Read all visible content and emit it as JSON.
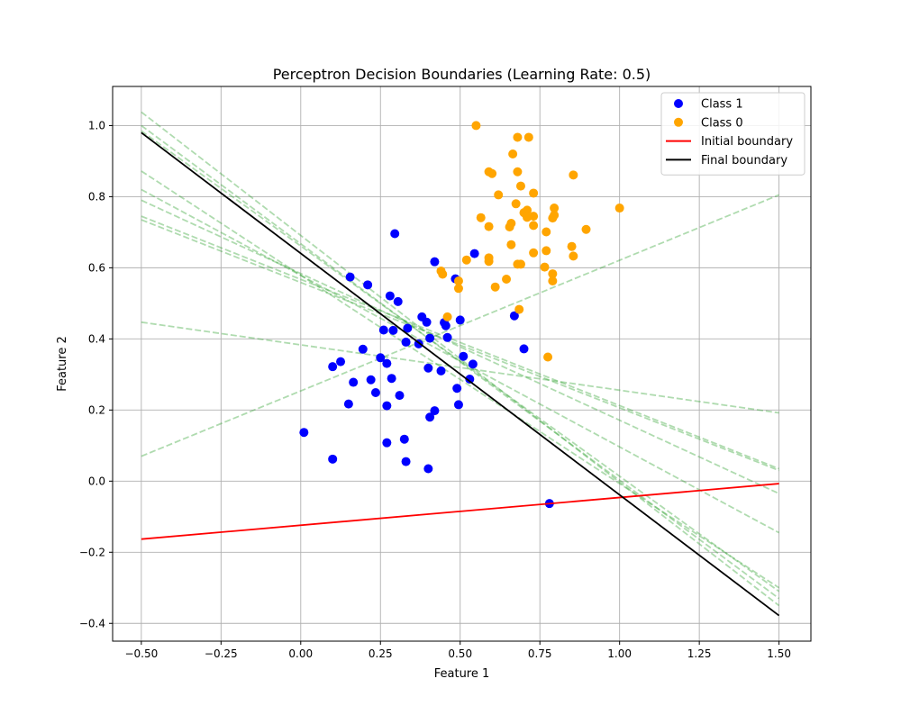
{
  "chart_data": {
    "type": "scatter",
    "title": "Perceptron Decision Boundaries (Learning Rate: 0.5)",
    "xlabel": "Feature 1",
    "ylabel": "Feature 2",
    "xlim": [
      -0.59,
      1.6
    ],
    "ylim": [
      -0.45,
      1.11
    ],
    "x_ticks": [
      -0.5,
      -0.25,
      0.0,
      0.25,
      0.5,
      0.75,
      1.0,
      1.25,
      1.5
    ],
    "x_tick_labels": [
      "−0.50",
      "−0.25",
      "0.00",
      "0.25",
      "0.50",
      "0.75",
      "1.00",
      "1.25",
      "1.50"
    ],
    "y_ticks": [
      -0.4,
      -0.2,
      0.0,
      0.2,
      0.4,
      0.6,
      0.8,
      1.0
    ],
    "y_tick_labels": [
      "−0.4",
      "−0.2",
      "0.0",
      "0.2",
      "0.4",
      "0.6",
      "0.8",
      "1.0"
    ],
    "grid": true,
    "legend_position": "top-right",
    "colors": {
      "class1": "#0000ff",
      "class0": "#ffa500",
      "initial": "#ff0000",
      "final": "#000000",
      "intermediate": "#2ca02c"
    },
    "series": [
      {
        "name": "Class 1",
        "kind": "scatter",
        "color": "#0000ff",
        "points": [
          [
            0.01,
            0.137
          ],
          [
            0.1,
            0.062
          ],
          [
            0.1,
            0.322
          ],
          [
            0.125,
            0.336
          ],
          [
            0.155,
            0.574
          ],
          [
            0.15,
            0.217
          ],
          [
            0.165,
            0.278
          ],
          [
            0.195,
            0.371
          ],
          [
            0.21,
            0.552
          ],
          [
            0.22,
            0.285
          ],
          [
            0.235,
            0.249
          ],
          [
            0.25,
            0.347
          ],
          [
            0.26,
            0.425
          ],
          [
            0.27,
            0.331
          ],
          [
            0.27,
            0.212
          ],
          [
            0.27,
            0.108
          ],
          [
            0.28,
            0.521
          ],
          [
            0.285,
            0.289
          ],
          [
            0.29,
            0.424
          ],
          [
            0.295,
            0.696
          ],
          [
            0.305,
            0.505
          ],
          [
            0.31,
            0.241
          ],
          [
            0.325,
            0.118
          ],
          [
            0.33,
            0.391
          ],
          [
            0.335,
            0.43
          ],
          [
            0.33,
            0.055
          ],
          [
            0.37,
            0.386
          ],
          [
            0.38,
            0.462
          ],
          [
            0.395,
            0.447
          ],
          [
            0.4,
            0.318
          ],
          [
            0.405,
            0.402
          ],
          [
            0.405,
            0.18
          ],
          [
            0.4,
            0.035
          ],
          [
            0.42,
            0.617
          ],
          [
            0.42,
            0.198
          ],
          [
            0.44,
            0.31
          ],
          [
            0.45,
            0.446
          ],
          [
            0.455,
            0.437
          ],
          [
            0.46,
            0.404
          ],
          [
            0.485,
            0.569
          ],
          [
            0.49,
            0.261
          ],
          [
            0.495,
            0.215
          ],
          [
            0.5,
            0.453
          ],
          [
            0.51,
            0.351
          ],
          [
            0.53,
            0.287
          ],
          [
            0.54,
            0.329
          ],
          [
            0.545,
            0.64
          ],
          [
            0.67,
            0.465
          ],
          [
            0.7,
            0.372
          ],
          [
            0.78,
            -0.063
          ]
        ]
      },
      {
        "name": "Class 0",
        "kind": "scatter",
        "color": "#ffa500",
        "points": [
          [
            0.55,
            1.0
          ],
          [
            0.68,
            0.967
          ],
          [
            0.715,
            0.967
          ],
          [
            0.665,
            0.92
          ],
          [
            0.855,
            0.861
          ],
          [
            0.59,
            0.87
          ],
          [
            0.6,
            0.865
          ],
          [
            0.68,
            0.87
          ],
          [
            0.69,
            0.83
          ],
          [
            0.62,
            0.805
          ],
          [
            0.73,
            0.81
          ],
          [
            0.675,
            0.78
          ],
          [
            1.0,
            0.768
          ],
          [
            0.795,
            0.768
          ],
          [
            0.71,
            0.762
          ],
          [
            0.7,
            0.755
          ],
          [
            0.795,
            0.748
          ],
          [
            0.73,
            0.745
          ],
          [
            0.71,
            0.742
          ],
          [
            0.79,
            0.74
          ],
          [
            0.565,
            0.741
          ],
          [
            0.66,
            0.725
          ],
          [
            0.655,
            0.715
          ],
          [
            0.59,
            0.716
          ],
          [
            0.73,
            0.719
          ],
          [
            0.895,
            0.708
          ],
          [
            0.77,
            0.701
          ],
          [
            0.66,
            0.665
          ],
          [
            0.85,
            0.66
          ],
          [
            0.77,
            0.648
          ],
          [
            0.73,
            0.642
          ],
          [
            0.855,
            0.633
          ],
          [
            0.59,
            0.628
          ],
          [
            0.52,
            0.622
          ],
          [
            0.59,
            0.618
          ],
          [
            0.68,
            0.61
          ],
          [
            0.69,
            0.61
          ],
          [
            0.765,
            0.602
          ],
          [
            0.44,
            0.591
          ],
          [
            0.445,
            0.582
          ],
          [
            0.79,
            0.583
          ],
          [
            0.79,
            0.563
          ],
          [
            0.645,
            0.568
          ],
          [
            0.495,
            0.563
          ],
          [
            0.61,
            0.546
          ],
          [
            0.495,
            0.542
          ],
          [
            0.685,
            0.483
          ],
          [
            0.46,
            0.462
          ],
          [
            0.775,
            0.349
          ]
        ]
      },
      {
        "name": "Initial boundary",
        "kind": "line",
        "color": "#ff0000",
        "style": "solid",
        "points": [
          [
            -0.5,
            -0.163
          ],
          [
            1.5,
            -0.007
          ]
        ]
      },
      {
        "name": "Final boundary",
        "kind": "line",
        "color": "#000000",
        "style": "solid",
        "points": [
          [
            -0.5,
            0.98
          ],
          [
            1.5,
            -0.378
          ]
        ]
      }
    ],
    "intermediate_boundaries": {
      "color": "#2ca02c",
      "style": "dashed",
      "lines": [
        [
          [
            -0.5,
            0.07
          ],
          [
            1.5,
            0.805
          ]
        ],
        [
          [
            -0.5,
            0.447
          ],
          [
            1.5,
            0.192
          ]
        ],
        [
          [
            -0.5,
            0.745
          ],
          [
            1.5,
            0.035
          ]
        ],
        [
          [
            -0.5,
            0.735
          ],
          [
            1.5,
            0.03
          ]
        ],
        [
          [
            -0.5,
            0.79
          ],
          [
            1.5,
            -0.035
          ]
        ],
        [
          [
            -0.5,
            0.82
          ],
          [
            1.5,
            -0.145
          ]
        ],
        [
          [
            -0.5,
            0.872
          ],
          [
            1.5,
            -0.3
          ]
        ],
        [
          [
            -0.5,
            0.985
          ],
          [
            1.5,
            -0.31
          ]
        ],
        [
          [
            -0.5,
            1.0
          ],
          [
            1.5,
            -0.33
          ]
        ],
        [
          [
            -0.5,
            1.038
          ],
          [
            1.5,
            -0.35
          ]
        ]
      ]
    }
  }
}
